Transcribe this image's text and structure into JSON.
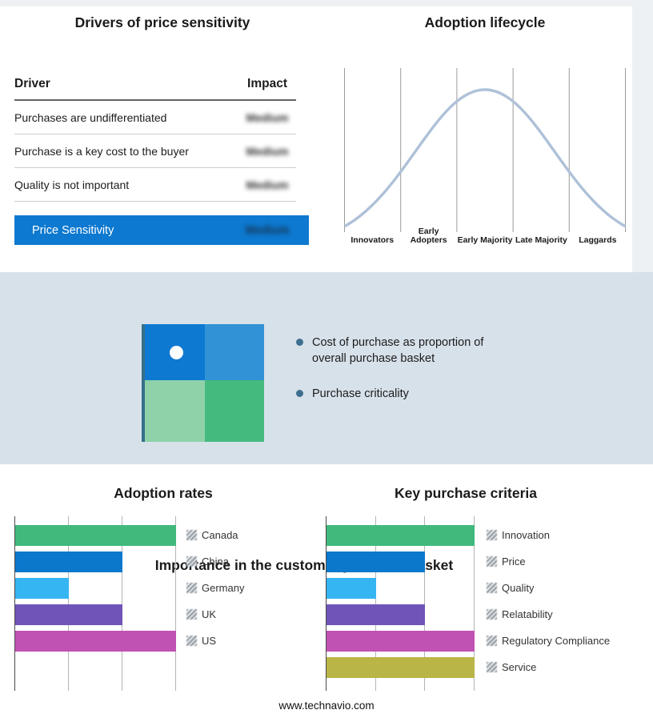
{
  "drivers": {
    "title": "Drivers of price sensitivity",
    "columns": {
      "driver": "Driver",
      "impact": "Impact"
    },
    "rows": [
      {
        "driver": "Purchases are undifferentiated",
        "impact": "Medium"
      },
      {
        "driver": "Purchase is a key cost to the buyer",
        "impact": "Medium"
      },
      {
        "driver": "Quality is not important",
        "impact": "Medium"
      }
    ],
    "summary": {
      "label": "Price Sensitivity",
      "impact": "Medium",
      "bar_color": "#0d79d0"
    },
    "impact_values_redacted": true
  },
  "basket": {
    "title": "Importance in the customer purchase basket",
    "bullets": [
      "Cost of purchase as proportion of overall purchase basket",
      "Purchase criticality"
    ],
    "background": "#d7e1ea",
    "bullet_color": "#3c6e8f",
    "quadrant_colors": {
      "top_left": "#0d79d0",
      "top_right": "#3193d6",
      "bottom_left": "#8fd2a9",
      "bottom_right": "#45ba7f"
    }
  },
  "chart_data": [
    {
      "type": "line",
      "title": "Adoption lifecycle",
      "categories": [
        "Innovators",
        "Early Adopters",
        "Early Majority",
        "Late Majority",
        "Laggards"
      ],
      "shape": "bell curve",
      "peak_category": "Early Majority",
      "line_color": "#aec1d8",
      "grid": "vertical category separators, no y-axis values"
    },
    {
      "type": "bar",
      "title": "Adoption rates",
      "orientation": "horizontal",
      "categories": [
        "Canada",
        "China",
        "Germany",
        "UK",
        "US"
      ],
      "values": [
        3,
        2,
        1,
        2,
        3
      ],
      "xlim": [
        0,
        3
      ],
      "colors": [
        "#41b97d",
        "#0b78cc",
        "#35b5f2",
        "#7054b8",
        "#c052b4"
      ],
      "legend_position": "right",
      "grid": "vertical gridlines, unlabeled axis"
    },
    {
      "type": "bar",
      "title": "Key purchase criteria",
      "orientation": "horizontal",
      "categories": [
        "Innovation",
        "Price",
        "Quality",
        "Relatability",
        "Regulatory Compliance",
        "Service"
      ],
      "values": [
        3,
        2,
        1,
        2,
        3,
        3
      ],
      "xlim": [
        0,
        3
      ],
      "colors": [
        "#41b97d",
        "#0b78cc",
        "#35b5f2",
        "#7054b8",
        "#c052b4",
        "#b9b546"
      ],
      "legend_position": "right",
      "grid": "vertical gridlines, unlabeled axis"
    }
  ],
  "footer": {
    "text": "www.technavio.com"
  }
}
